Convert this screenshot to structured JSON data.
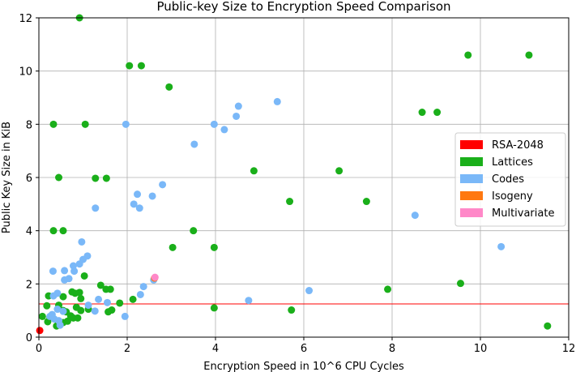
{
  "chart_data": {
    "type": "scatter",
    "title": "Public-key Size to Encryption Speed Comparison",
    "xlabel": "Encryption Speed in 10^6 CPU Cycles",
    "ylabel": "Public Key Size in KiB",
    "xlim": [
      0,
      12
    ],
    "ylim": [
      0,
      12
    ],
    "xticks": [
      "0",
      "2",
      "4",
      "6",
      "8",
      "10",
      "12"
    ],
    "yticks": [
      "0",
      "2",
      "4",
      "6",
      "8",
      "10",
      "12"
    ],
    "grid": true,
    "legend_position": "center-right",
    "reference_line": {
      "y": 1.25,
      "color": "#ff0000"
    },
    "series": [
      {
        "name": "RSA-2048",
        "color": "#ff0000",
        "points": [
          [
            0.02,
            0.25
          ]
        ]
      },
      {
        "name": "Lattices",
        "color": "#1aaf1a",
        "points": [
          [
            0.92,
            12.0
          ],
          [
            2.05,
            10.2
          ],
          [
            2.32,
            10.2
          ],
          [
            2.95,
            9.4
          ],
          [
            9.72,
            10.6
          ],
          [
            11.1,
            10.6
          ],
          [
            0.33,
            8.0
          ],
          [
            1.05,
            8.0
          ],
          [
            8.68,
            8.45
          ],
          [
            9.02,
            8.45
          ],
          [
            0.45,
            6.0
          ],
          [
            1.28,
            5.97
          ],
          [
            1.53,
            5.97
          ],
          [
            4.87,
            6.25
          ],
          [
            6.8,
            6.25
          ],
          [
            5.68,
            5.1
          ],
          [
            7.42,
            5.1
          ],
          [
            0.33,
            4.0
          ],
          [
            0.55,
            4.0
          ],
          [
            3.5,
            4.0
          ],
          [
            3.03,
            3.37
          ],
          [
            3.97,
            3.37
          ],
          [
            1.03,
            2.3
          ],
          [
            1.4,
            1.95
          ],
          [
            1.52,
            1.8
          ],
          [
            1.62,
            1.8
          ],
          [
            7.9,
            1.8
          ],
          [
            9.55,
            2.02
          ],
          [
            0.22,
            1.55
          ],
          [
            0.55,
            1.52
          ],
          [
            0.75,
            1.7
          ],
          [
            0.82,
            1.65
          ],
          [
            0.92,
            1.68
          ],
          [
            0.95,
            1.45
          ],
          [
            0.18,
            1.18
          ],
          [
            0.45,
            1.2
          ],
          [
            1.83,
            1.28
          ],
          [
            2.13,
            1.42
          ],
          [
            0.55,
            1.0
          ],
          [
            0.62,
            0.95
          ],
          [
            0.85,
            1.12
          ],
          [
            0.95,
            1.0
          ],
          [
            1.12,
            1.05
          ],
          [
            3.97,
            1.1
          ],
          [
            5.72,
            1.02
          ],
          [
            1.57,
            0.95
          ],
          [
            1.65,
            1.02
          ],
          [
            0.08,
            0.78
          ],
          [
            0.2,
            0.58
          ],
          [
            0.25,
            0.75
          ],
          [
            0.4,
            0.42
          ],
          [
            0.45,
            0.55
          ],
          [
            0.55,
            0.55
          ],
          [
            0.65,
            0.6
          ],
          [
            0.72,
            0.8
          ],
          [
            0.78,
            0.72
          ],
          [
            0.88,
            0.72
          ],
          [
            11.52,
            0.42
          ]
        ]
      },
      {
        "name": "Codes",
        "color": "#7ab8f8",
        "points": [
          [
            1.97,
            8.0
          ],
          [
            3.97,
            8.0
          ],
          [
            4.2,
            7.8
          ],
          [
            4.47,
            8.3
          ],
          [
            4.52,
            8.68
          ],
          [
            5.4,
            8.85
          ],
          [
            3.52,
            7.25
          ],
          [
            2.8,
            5.73
          ],
          [
            2.23,
            5.37
          ],
          [
            2.57,
            5.3
          ],
          [
            2.15,
            5.0
          ],
          [
            2.28,
            4.85
          ],
          [
            1.28,
            4.85
          ],
          [
            8.52,
            4.58
          ],
          [
            10.47,
            3.4
          ],
          [
            0.97,
            3.58
          ],
          [
            1.1,
            3.05
          ],
          [
            1.0,
            2.92
          ],
          [
            0.92,
            2.75
          ],
          [
            0.78,
            2.68
          ],
          [
            0.32,
            2.48
          ],
          [
            0.58,
            2.5
          ],
          [
            0.8,
            2.48
          ],
          [
            0.68,
            2.2
          ],
          [
            0.58,
            2.15
          ],
          [
            2.6,
            2.15
          ],
          [
            2.37,
            1.9
          ],
          [
            6.12,
            1.75
          ],
          [
            2.3,
            1.6
          ],
          [
            0.42,
            1.65
          ],
          [
            0.33,
            1.55
          ],
          [
            1.35,
            1.42
          ],
          [
            4.75,
            1.38
          ],
          [
            1.55,
            1.3
          ],
          [
            1.12,
            1.2
          ],
          [
            0.42,
            1.05
          ],
          [
            0.55,
            0.97
          ],
          [
            1.27,
            0.98
          ],
          [
            0.3,
            0.85
          ],
          [
            0.25,
            0.78
          ],
          [
            0.35,
            0.68
          ],
          [
            0.45,
            0.62
          ],
          [
            1.95,
            0.78
          ],
          [
            0.48,
            0.45
          ]
        ]
      },
      {
        "name": "Isogeny",
        "color": "#ff7810",
        "points": [
          [
            2.62,
            2.22
          ]
        ]
      },
      {
        "name": "Multivariate",
        "color": "#ff88c8",
        "points": [
          [
            2.63,
            2.25
          ]
        ]
      }
    ]
  }
}
